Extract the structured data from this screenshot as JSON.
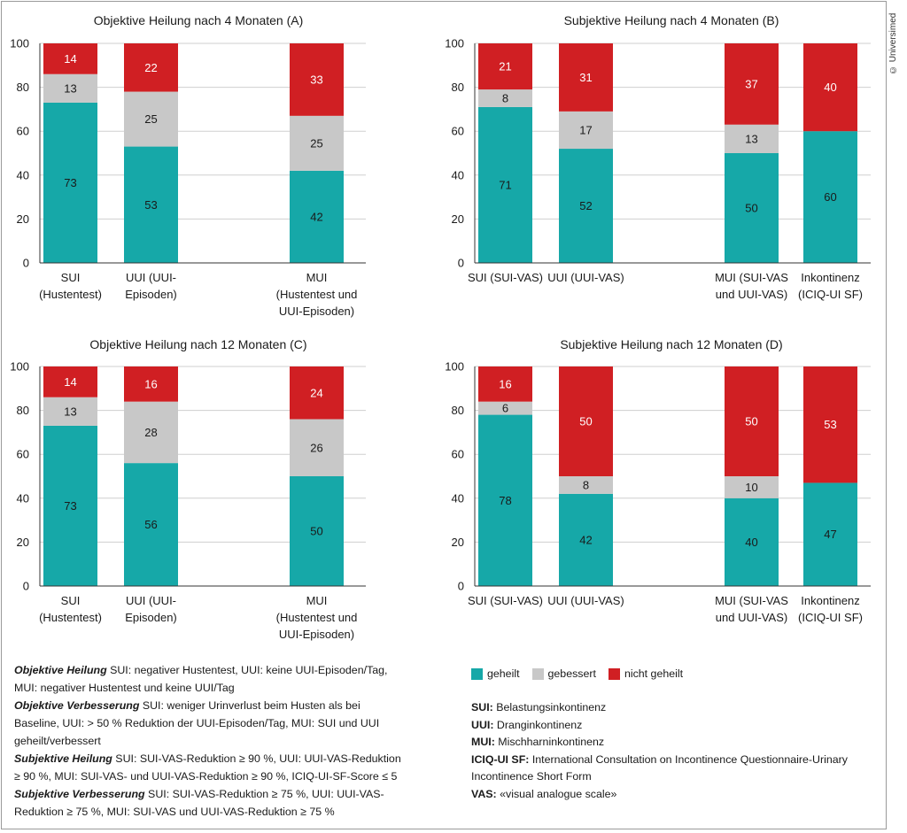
{
  "colors": {
    "geheilt": "#16a8a8",
    "gebessert": "#c8c8c8",
    "nicht_geheilt": "#d01f23"
  },
  "credit": "© Universimed",
  "chart_data": [
    {
      "type": "bar",
      "stacked": true,
      "title": "Objektive Heilung nach 4 Monaten (A)",
      "ylim": [
        0,
        100
      ],
      "yticks": [
        "0",
        "20",
        "40",
        "60",
        "80",
        "100"
      ],
      "categories": [
        [
          "SUI",
          "(Hustentest)"
        ],
        [
          "UUI (UUI-",
          "Episoden)"
        ],
        [],
        [
          "MUI",
          "(Hustentest und",
          "UUI-Episoden)"
        ]
      ],
      "series": [
        {
          "name": "geheilt",
          "values": [
            73,
            53,
            null,
            42
          ]
        },
        {
          "name": "gebessert",
          "values": [
            13,
            25,
            null,
            25
          ]
        },
        {
          "name": "nicht geheilt",
          "values": [
            14,
            22,
            null,
            33
          ]
        }
      ]
    },
    {
      "type": "bar",
      "stacked": true,
      "title": "Subjektive Heilung nach 4 Monaten (B)",
      "ylim": [
        0,
        100
      ],
      "yticks": [
        "0",
        "20",
        "40",
        "60",
        "80",
        "100"
      ],
      "categories": [
        [
          "SUI (SUI-VAS)"
        ],
        [
          "UUI (UUI-VAS)"
        ],
        [
          "MUI (SUI-VAS",
          "und UUI-VAS)"
        ],
        [
          "Inkontinenz",
          "(ICIQ-UI SF)"
        ]
      ],
      "series": [
        {
          "name": "geheilt",
          "values": [
            71,
            52,
            50,
            60
          ]
        },
        {
          "name": "gebessert",
          "values": [
            8,
            17,
            13,
            null
          ]
        },
        {
          "name": "nicht geheilt",
          "values": [
            21,
            31,
            37,
            40
          ]
        }
      ]
    },
    {
      "type": "bar",
      "stacked": true,
      "title": "Objektive Heilung nach 12 Monaten (C)",
      "ylim": [
        0,
        100
      ],
      "yticks": [
        "0",
        "20",
        "40",
        "60",
        "80",
        "100"
      ],
      "categories": [
        [
          "SUI",
          "(Hustentest)"
        ],
        [
          "UUI (UUI-",
          "Episoden)"
        ],
        [],
        [
          "MUI",
          "(Hustentest und",
          "UUI-Episoden)"
        ]
      ],
      "series": [
        {
          "name": "geheilt",
          "values": [
            73,
            56,
            null,
            50
          ]
        },
        {
          "name": "gebessert",
          "values": [
            13,
            28,
            null,
            26
          ]
        },
        {
          "name": "nicht geheilt",
          "values": [
            14,
            16,
            null,
            24
          ]
        }
      ]
    },
    {
      "type": "bar",
      "stacked": true,
      "title": "Subjektive Heilung nach 12 Monaten (D)",
      "ylim": [
        0,
        100
      ],
      "yticks": [
        "0",
        "20",
        "40",
        "60",
        "80",
        "100"
      ],
      "categories": [
        [
          "SUI (SUI-VAS)"
        ],
        [
          "UUI (UUI-VAS)"
        ],
        [
          "MUI (SUI-VAS",
          "und UUI-VAS)"
        ],
        [
          "Inkontinenz",
          "(ICIQ-UI SF)"
        ]
      ],
      "series": [
        {
          "name": "geheilt",
          "values": [
            78,
            42,
            40,
            47
          ]
        },
        {
          "name": "gebessert",
          "values": [
            6,
            8,
            10,
            null
          ]
        },
        {
          "name": "nicht geheilt",
          "values": [
            16,
            50,
            50,
            53
          ]
        }
      ]
    }
  ],
  "legend": [
    {
      "label": "geheilt",
      "color": "#16a8a8"
    },
    {
      "label": "gebessert",
      "color": "#c8c8c8"
    },
    {
      "label": "nicht geheilt",
      "color": "#d01f23"
    }
  ],
  "notes": {
    "obj_heilung_term": "Objektive Heilung",
    "obj_heilung_text": " SUI: negativer Hustentest, UUI: keine UUI-Episoden/Tag, MUI: negativer Hustentest und keine UUI/Tag",
    "obj_verbesserung_term": "Objektive Verbesserung",
    "obj_verbesserung_text": " SUI: weniger Urinverlust beim Husten als bei Baseline, UUI: > 50 % Reduktion der UUI-Episoden/Tag, MUI: SUI und UUI geheilt/verbessert",
    "subj_heilung_term": "Subjektive Heilung",
    "subj_heilung_text": " SUI: SUI-VAS-Reduktion ≥ 90 %, UUI: UUI-VAS-Reduktion ≥ 90 %, MUI: SUI-VAS- und UUI-VAS-Reduktion ≥ 90 %, ICIQ-UI-SF-Score ≤ 5",
    "subj_verbesserung_term": "Subjektive Verbesserung",
    "subj_verbesserung_text": " SUI: SUI-VAS-Reduktion ≥ 75 %, UUI: UUI-VAS-Reduktion ≥ 75 %, MUI: SUI-VAS und UUI-VAS-Reduktion ≥ 75 %"
  },
  "abbreviations": [
    {
      "abbr": "SUI:",
      "text": " Belastungsinkontinenz"
    },
    {
      "abbr": "UUI:",
      "text": " Dranginkontinenz"
    },
    {
      "abbr": "MUI:",
      "text": " Mischharninkontinenz"
    },
    {
      "abbr": "ICIQ-UI SF:",
      "text": " International Consultation on Incontinence Questionnaire-Urinary Incontinence Short Form"
    },
    {
      "abbr": "VAS:",
      "text": " «visual analogue scale»"
    }
  ]
}
